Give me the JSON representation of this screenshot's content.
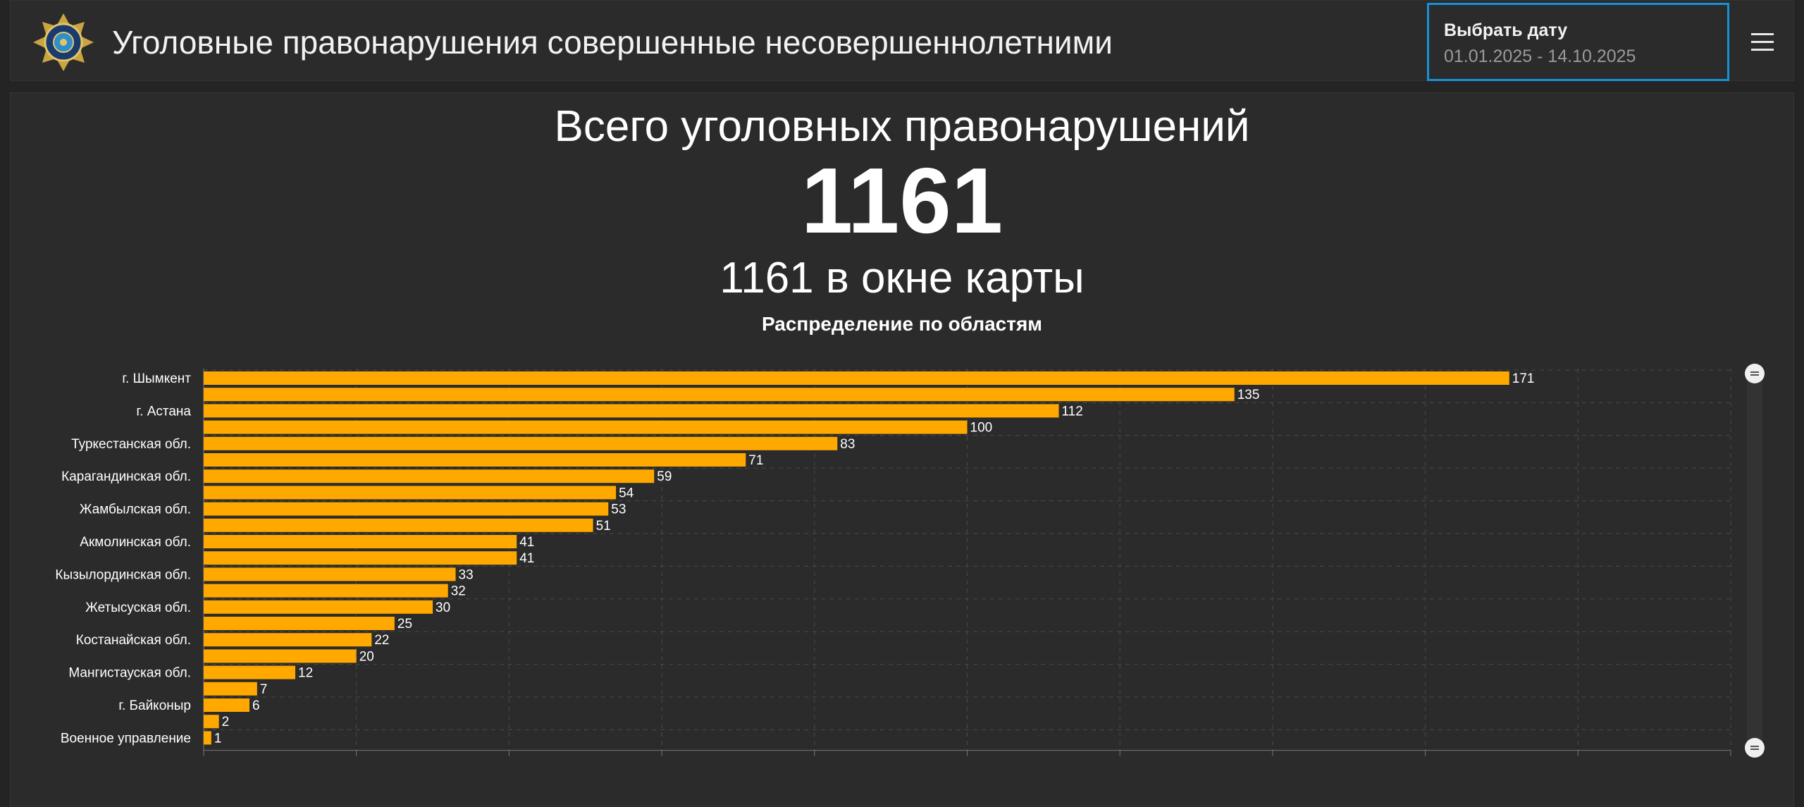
{
  "header": {
    "title": "Уголовные правонарушения совершенные несовершеннолетними",
    "date_picker": {
      "label": "Выбрать дату",
      "value": "01.01.2025 - 14.10.2025"
    }
  },
  "summary": {
    "total_title": "Всего уголовных правонарушений",
    "total_value": "1161",
    "map_count": "1161 в окне карты"
  },
  "colors": {
    "bar": "#ffa800",
    "background": "#2b2b2b",
    "accent": "#1890d6"
  },
  "chart_data": {
    "type": "bar",
    "orientation": "horizontal",
    "title": "Распределение по областям",
    "categories": [
      "г. Шымкент",
      "",
      "г. Астана",
      "",
      "Туркестанская обл.",
      "",
      "Карагандинская обл.",
      "",
      "Жамбылская обл.",
      "",
      "Акмолинская обл.",
      "",
      "Кызылординская обл.",
      "",
      "Жетысуская обл.",
      "",
      "Костанайская обл.",
      "",
      "Мангистауская обл.",
      "",
      "г. Байконыр",
      "",
      "Военное управление"
    ],
    "values": [
      171,
      135,
      112,
      100,
      83,
      71,
      59,
      54,
      53,
      51,
      41,
      41,
      33,
      32,
      30,
      25,
      22,
      20,
      12,
      7,
      6,
      2,
      1
    ],
    "xlim": [
      0,
      200
    ],
    "grid": true,
    "legend": "none"
  }
}
